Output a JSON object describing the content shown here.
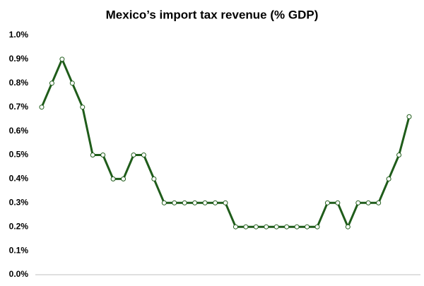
{
  "chart_data": {
    "type": "line",
    "title": "Mexico’s import tax revenue (% GDP)",
    "categories": [
      null,
      null,
      null,
      null,
      null,
      null,
      null,
      null,
      null,
      null,
      null,
      null,
      null,
      null,
      null,
      null,
      null,
      null,
      null,
      null,
      null,
      null,
      null,
      null,
      null,
      null,
      null,
      null,
      null,
      null,
      null,
      null,
      null,
      null,
      null,
      null,
      null
    ],
    "series": [
      {
        "color": "#1f5c1a",
        "values": [
          0.7,
          0.8,
          0.9,
          0.8,
          0.7,
          0.5,
          0.5,
          0.4,
          0.4,
          0.5,
          0.5,
          0.4,
          0.3,
          0.3,
          0.3,
          0.3,
          0.3,
          0.3,
          0.3,
          0.2,
          0.2,
          0.2,
          0.2,
          0.2,
          0.2,
          0.2,
          0.2,
          0.2,
          0.3,
          0.3,
          0.2,
          0.3,
          0.3,
          0.3,
          0.4,
          0.5,
          0.66
        ]
      }
    ],
    "ylim": [
      0,
      1.0
    ],
    "yticks": [
      {
        "value": 0,
        "label": "0.0%"
      },
      {
        "value": 0.1,
        "label": "0.1%"
      },
      {
        "value": 0.2,
        "label": "0.2%"
      },
      {
        "value": 0.3,
        "label": "0.3%"
      },
      {
        "value": 0.4,
        "label": "0.4%"
      },
      {
        "value": 0.5,
        "label": "0.5%"
      },
      {
        "value": 0.6,
        "label": "0.6%"
      },
      {
        "value": 0.7,
        "label": "0.7%"
      },
      {
        "value": 0.8,
        "label": "0.8%"
      },
      {
        "value": 0.9,
        "label": "0.9%"
      },
      {
        "value": 1.0,
        "label": "1.0%"
      }
    ],
    "grid": false
  }
}
